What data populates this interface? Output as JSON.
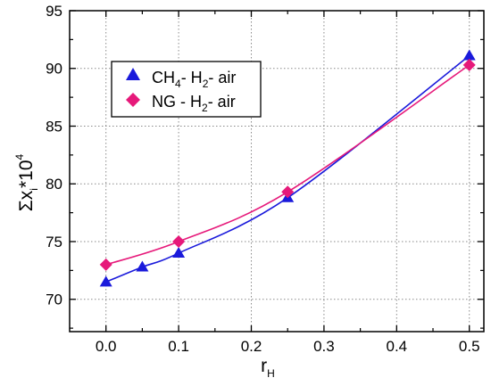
{
  "chart_data": {
    "type": "scatter",
    "title": "",
    "xlabel": {
      "main": "r",
      "sub": "H"
    },
    "ylabel": {
      "main": "Σx",
      "sub": "i",
      "mid": "*10",
      "sup": "4"
    },
    "xlim": [
      -0.05,
      0.52
    ],
    "ylim": [
      67.2,
      95
    ],
    "x_ticks": [
      0.0,
      0.1,
      0.2,
      0.3,
      0.4,
      0.5
    ],
    "x_tick_labels": [
      "0.0",
      "0.1",
      "0.2",
      "0.3",
      "0.4",
      "0.5"
    ],
    "y_ticks": [
      70,
      75,
      80,
      85,
      90,
      95
    ],
    "y_tick_labels": [
      "70",
      "75",
      "80",
      "85",
      "90",
      "95"
    ],
    "grid": true,
    "legend_position": "top-left",
    "series": [
      {
        "legend": {
          "a": "CH",
          "a_sub": "4",
          "b": "- H",
          "b_sub": "2",
          "c": "- air"
        },
        "marker": "triangle",
        "color": "#1a1adb",
        "x": [
          0.0,
          0.05,
          0.1,
          0.25,
          0.5
        ],
        "y": [
          71.5,
          72.8,
          74.0,
          78.8,
          91.1
        ]
      },
      {
        "legend": {
          "a": "NG - H",
          "a_sub": "2",
          "b": "- air"
        },
        "marker": "diamond",
        "color": "#e6197a",
        "x": [
          0.0,
          0.1,
          0.25,
          0.5
        ],
        "y": [
          73.0,
          75.0,
          79.3,
          90.3
        ]
      }
    ]
  }
}
